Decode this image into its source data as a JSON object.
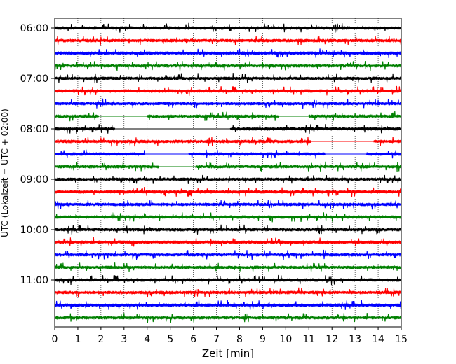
{
  "chart_data": {
    "type": "line",
    "xlabel": "Zeit  [min]",
    "ylabel": "UTC (Lokalzeit = UTC + 02:00)",
    "xlim": [
      0,
      15
    ],
    "x_ticks": [
      0,
      1,
      2,
      3,
      4,
      5,
      6,
      7,
      8,
      9,
      10,
      11,
      12,
      13,
      14,
      15
    ],
    "y_ticks": [
      "06:00",
      "07:00",
      "08:00",
      "09:00",
      "10:00",
      "11:00"
    ],
    "grid": "vertical dotted",
    "traces": [
      {
        "start": "06:00",
        "color": "#000000",
        "gaps": []
      },
      {
        "start": "06:15",
        "color": "#ff0000",
        "gaps": []
      },
      {
        "start": "06:30",
        "color": "#0000ff",
        "gaps": []
      },
      {
        "start": "06:45",
        "color": "#008000",
        "gaps": []
      },
      {
        "start": "07:00",
        "color": "#000000",
        "gaps": []
      },
      {
        "start": "07:15",
        "color": "#ff0000",
        "gaps": []
      },
      {
        "start": "07:30",
        "color": "#0000ff",
        "gaps": []
      },
      {
        "start": "07:45",
        "color": "#008000",
        "gaps": [
          [
            1.9,
            4.0
          ],
          [
            9.7,
            11.0
          ]
        ]
      },
      {
        "start": "08:00",
        "color": "#000000",
        "gaps": [
          [
            2.6,
            7.6
          ]
        ]
      },
      {
        "start": "08:15",
        "color": "#ff0000",
        "gaps": [
          [
            11.1,
            13.8
          ]
        ]
      },
      {
        "start": "08:30",
        "color": "#0000ff",
        "gaps": [
          [
            3.9,
            5.8
          ],
          [
            11.7,
            13.5
          ]
        ]
      },
      {
        "start": "08:45",
        "color": "#008000",
        "gaps": [
          [
            4.5,
            6.1
          ]
        ]
      },
      {
        "start": "09:00",
        "color": "#000000",
        "gaps": []
      },
      {
        "start": "09:15",
        "color": "#ff0000",
        "gaps": []
      },
      {
        "start": "09:30",
        "color": "#0000ff",
        "gaps": []
      },
      {
        "start": "09:45",
        "color": "#008000",
        "gaps": []
      },
      {
        "start": "10:00",
        "color": "#000000",
        "gaps": []
      },
      {
        "start": "10:15",
        "color": "#ff0000",
        "gaps": []
      },
      {
        "start": "10:30",
        "color": "#0000ff",
        "gaps": []
      },
      {
        "start": "10:45",
        "color": "#008000",
        "gaps": []
      },
      {
        "start": "11:00",
        "color": "#000000",
        "gaps": []
      },
      {
        "start": "11:15",
        "color": "#ff0000",
        "gaps": []
      },
      {
        "start": "11:30",
        "color": "#0000ff",
        "gaps": []
      },
      {
        "start": "11:45",
        "color": "#008000",
        "gaps": []
      }
    ]
  }
}
